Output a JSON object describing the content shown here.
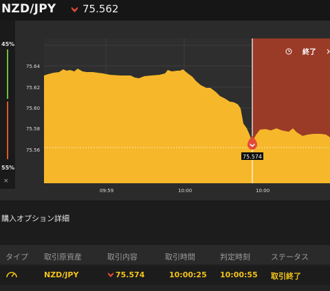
{
  "header": {
    "pair": "NZD/JPY",
    "price": "75.562",
    "direction": "down"
  },
  "gauge": {
    "top_pct": "45%",
    "bottom_pct": "55%",
    "close_symbol": "×"
  },
  "chart": {
    "y_ticks": [
      "75.64",
      "75.62",
      "75.60",
      "75.58",
      "75.56"
    ],
    "x_ticks": [
      "09:59",
      "10:00",
      "10:00"
    ],
    "end_label": "終了",
    "marker_price": "75.574",
    "colors": {
      "area": "#f6b82a",
      "expired": "#9a3b28",
      "marker": "#e24a38"
    }
  },
  "details": {
    "title": "購入オプション詳細",
    "columns": [
      "タイプ",
      "取引原資産",
      "取引内容",
      "取引時間",
      "判定時刻",
      "ステータス"
    ],
    "rows": [
      {
        "asset": "NZD/JPY",
        "direction": "down",
        "content": "75.574",
        "trade_time": "10:00:25",
        "judge_time": "10:00:55",
        "status": "取引終了"
      }
    ]
  }
}
